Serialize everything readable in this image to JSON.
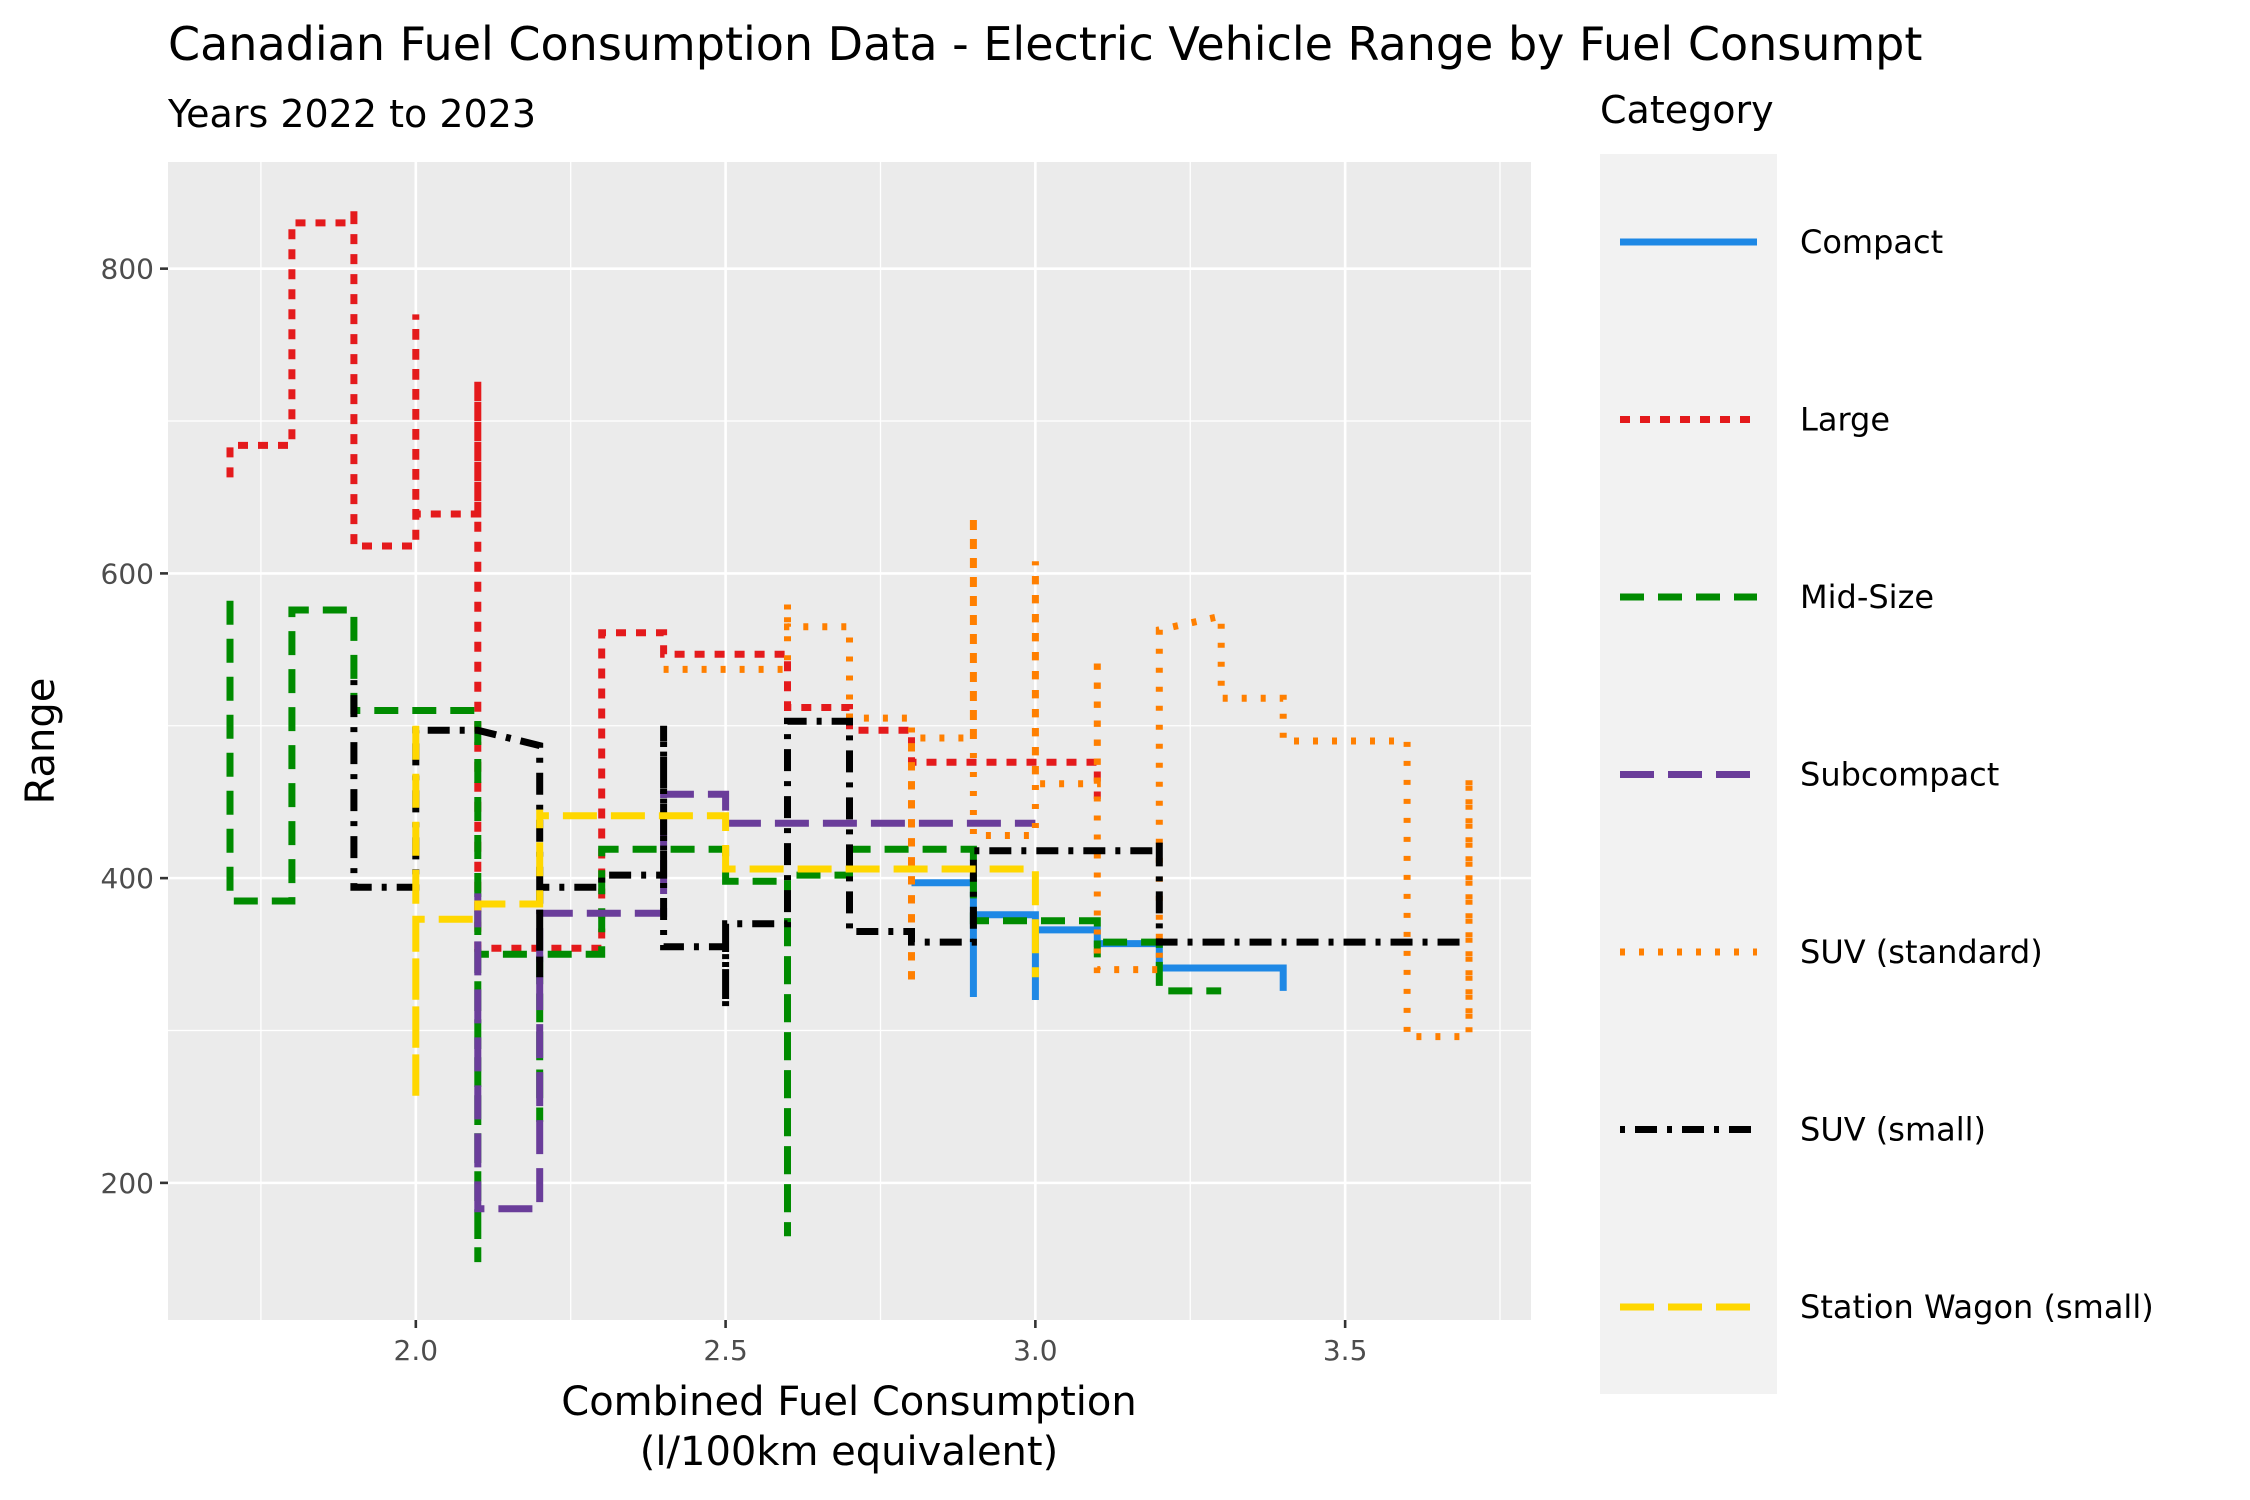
{
  "chart_data": {
    "type": "line",
    "title": "Canadian Fuel Consumption Data - Electric Vehicle Range by Fuel Consumpt",
    "subtitle": "Years 2022 to 2023",
    "xlabel_line1": "Combined Fuel Consumption",
    "xlabel_line2": "(l/100km equivalent)",
    "ylabel": "Range",
    "xlim": [
      1.6,
      3.8
    ],
    "ylim": [
      110,
      870
    ],
    "x_ticks": [
      2.0,
      2.5,
      3.0,
      3.5
    ],
    "x_tick_labels": [
      "2.0",
      "2.5",
      "3.0",
      "3.5"
    ],
    "y_ticks": [
      200,
      400,
      600,
      800
    ],
    "y_tick_labels": [
      "200",
      "400",
      "600",
      "800"
    ],
    "grid": true,
    "legend_position": "right",
    "legend_title": "Category",
    "series": [
      {
        "name": "Compact",
        "color": "#1E88E5",
        "dash": "solid",
        "points": [
          [
            2.8,
            397
          ],
          [
            2.9,
            397
          ],
          [
            2.9,
            322
          ],
          [
            2.9,
            376
          ],
          [
            3.0,
            376
          ],
          [
            3.0,
            320
          ],
          [
            3.0,
            366
          ],
          [
            3.1,
            366
          ],
          [
            3.1,
            357
          ],
          [
            3.2,
            357
          ],
          [
            3.2,
            341
          ],
          [
            3.4,
            341
          ],
          [
            3.4,
            326
          ]
        ]
      },
      {
        "name": "Large",
        "color": "#E41A1C",
        "dash": "dotted-dash",
        "points": [
          [
            1.7,
            663
          ],
          [
            1.7,
            684
          ],
          [
            1.8,
            684
          ],
          [
            1.8,
            830
          ],
          [
            1.9,
            830
          ],
          [
            1.9,
            840
          ],
          [
            1.9,
            618
          ],
          [
            2.0,
            618
          ],
          [
            2.0,
            770
          ],
          [
            2.0,
            639
          ],
          [
            2.1,
            639
          ],
          [
            2.1,
            726
          ],
          [
            2.1,
            354
          ],
          [
            2.3,
            354
          ],
          [
            2.3,
            561
          ],
          [
            2.4,
            561
          ],
          [
            2.4,
            547
          ],
          [
            2.5,
            547
          ],
          [
            2.5,
            547
          ],
          [
            2.6,
            547
          ],
          [
            2.6,
            512
          ],
          [
            2.7,
            512
          ],
          [
            2.7,
            497
          ],
          [
            2.8,
            497
          ],
          [
            2.8,
            476
          ],
          [
            3.1,
            476
          ],
          [
            3.1,
            452
          ]
        ]
      },
      {
        "name": "Mid-Size",
        "color": "#008B00",
        "dash": "dashed",
        "points": [
          [
            1.7,
            582
          ],
          [
            1.7,
            385
          ],
          [
            1.8,
            385
          ],
          [
            1.8,
            576
          ],
          [
            1.9,
            576
          ],
          [
            1.9,
            510
          ],
          [
            2.1,
            510
          ],
          [
            2.1,
            148
          ],
          [
            2.1,
            350
          ],
          [
            2.2,
            350
          ],
          [
            2.2,
            240
          ],
          [
            2.2,
            240
          ],
          [
            2.2,
            350
          ],
          [
            2.3,
            350
          ],
          [
            2.3,
            419
          ],
          [
            2.5,
            419
          ],
          [
            2.5,
            398
          ],
          [
            2.6,
            398
          ],
          [
            2.6,
            165
          ],
          [
            2.6,
            402
          ],
          [
            2.7,
            402
          ],
          [
            2.7,
            419
          ],
          [
            2.9,
            419
          ],
          [
            2.9,
            372
          ],
          [
            3.1,
            372
          ],
          [
            3.1,
            348
          ],
          [
            3.1,
            358
          ],
          [
            3.2,
            358
          ],
          [
            3.2,
            326
          ],
          [
            3.3,
            326
          ]
        ]
      },
      {
        "name": "Subcompact",
        "color": "#6A3D9A",
        "dash": "long-dash",
        "points": [
          [
            2.1,
            390
          ],
          [
            2.1,
            183
          ],
          [
            2.2,
            183
          ],
          [
            2.2,
            193
          ],
          [
            2.2,
            377
          ],
          [
            2.4,
            377
          ],
          [
            2.4,
            455
          ],
          [
            2.5,
            455
          ],
          [
            2.5,
            436
          ],
          [
            3.0,
            436
          ]
        ]
      },
      {
        "name": "SUV (standard)",
        "color": "#FF7F00",
        "dash": "dotted",
        "points": [
          [
            2.4,
            537
          ],
          [
            2.6,
            537
          ],
          [
            2.6,
            580
          ],
          [
            2.6,
            565
          ],
          [
            2.7,
            565
          ],
          [
            2.7,
            505
          ],
          [
            2.8,
            505
          ],
          [
            2.8,
            330
          ],
          [
            2.8,
            492
          ],
          [
            2.9,
            492
          ],
          [
            2.9,
            638
          ],
          [
            2.9,
            428
          ],
          [
            3.0,
            428
          ],
          [
            3.0,
            608
          ],
          [
            3.0,
            462
          ],
          [
            3.1,
            462
          ],
          [
            3.1,
            545
          ],
          [
            3.1,
            340
          ],
          [
            3.2,
            340
          ],
          [
            3.2,
            563
          ],
          [
            3.3,
            572
          ],
          [
            3.3,
            518
          ],
          [
            3.4,
            518
          ],
          [
            3.4,
            490
          ],
          [
            3.6,
            490
          ],
          [
            3.6,
            296
          ],
          [
            3.7,
            296
          ],
          [
            3.7,
            467
          ],
          [
            3.7,
            305
          ]
        ]
      },
      {
        "name": "SUV (small)",
        "color": "#000000",
        "dash": "dot-dash",
        "points": [
          [
            1.9,
            530
          ],
          [
            1.9,
            394
          ],
          [
            2.0,
            394
          ],
          [
            2.0,
            497
          ],
          [
            2.1,
            497
          ],
          [
            2.2,
            487
          ],
          [
            2.2,
            335
          ],
          [
            2.2,
            394
          ],
          [
            2.3,
            394
          ],
          [
            2.3,
            402
          ],
          [
            2.4,
            402
          ],
          [
            2.4,
            500
          ],
          [
            2.4,
            363
          ],
          [
            2.4,
            355
          ],
          [
            2.5,
            355
          ],
          [
            2.5,
            315
          ],
          [
            2.5,
            370
          ],
          [
            2.6,
            370
          ],
          [
            2.6,
            503
          ],
          [
            2.7,
            503
          ],
          [
            2.7,
            375
          ],
          [
            2.7,
            365
          ],
          [
            2.8,
            365
          ],
          [
            2.8,
            358
          ],
          [
            2.9,
            358
          ],
          [
            2.9,
            418
          ],
          [
            3.2,
            418
          ],
          [
            3.2,
            426
          ],
          [
            3.2,
            358
          ],
          [
            3.7,
            358
          ]
        ]
      },
      {
        "name": "Station Wagon (small)",
        "color": "#FFD700",
        "dash": "long-dash",
        "points": [
          [
            2.0,
            500
          ],
          [
            2.0,
            255
          ],
          [
            2.0,
            373
          ],
          [
            2.1,
            373
          ],
          [
            2.1,
            383
          ],
          [
            2.2,
            383
          ],
          [
            2.2,
            445
          ],
          [
            2.2,
            441
          ],
          [
            2.5,
            441
          ],
          [
            2.5,
            406
          ],
          [
            2.7,
            406
          ],
          [
            2.7,
            406
          ],
          [
            3.0,
            406
          ],
          [
            3.0,
            335
          ]
        ]
      }
    ]
  }
}
